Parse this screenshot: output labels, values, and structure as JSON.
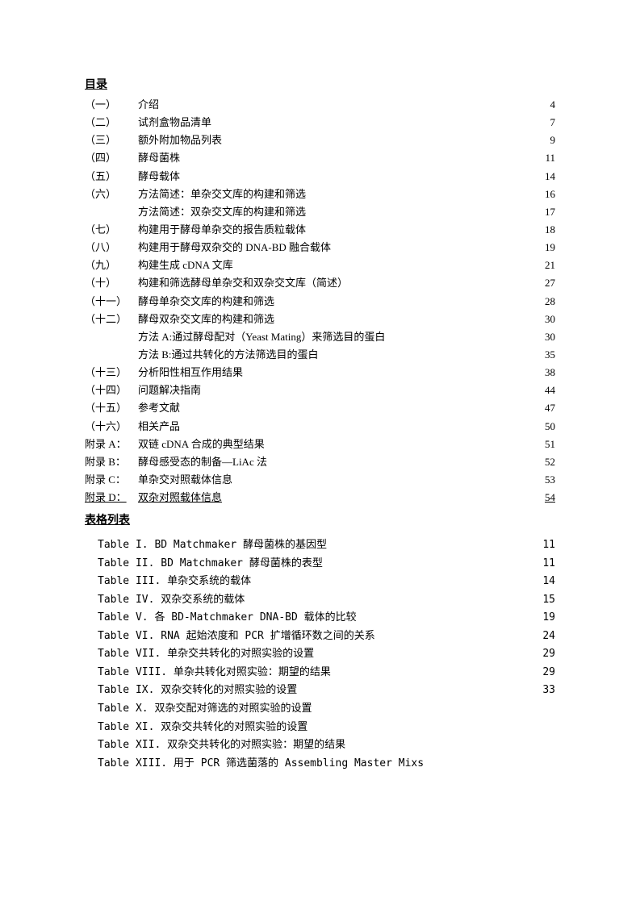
{
  "headings": {
    "toc": "目录",
    "tables": "表格列表"
  },
  "toc": [
    {
      "num": "（一）",
      "title": "介绍",
      "page": "4"
    },
    {
      "num": "（二）",
      "title": "试剂盒物品清单",
      "page": "7"
    },
    {
      "num": "（三）",
      "title": "额外附加物品列表",
      "page": "9"
    },
    {
      "num": "（四）",
      "title": "酵母菌株",
      "page": "11"
    },
    {
      "num": "（五）",
      "title": "酵母载体",
      "page": "14"
    },
    {
      "num": "（六）",
      "title": "方法简述：单杂交文库的构建和筛选",
      "page": "16"
    },
    {
      "num": "",
      "title": "方法简述：双杂交文库的构建和筛选",
      "page": "17"
    },
    {
      "num": "（七）",
      "title": "构建用于酵母单杂交的报告质粒载体",
      "page": "18"
    },
    {
      "num": "（八）",
      "title": "构建用于酵母双杂交的 DNA-BD 融合载体",
      "page": "19"
    },
    {
      "num": "（九）",
      "title": "构建生成 cDNA 文库",
      "page": "21"
    },
    {
      "num": "（十）",
      "title": "构建和筛选酵母单杂交和双杂交文库（简述）",
      "page": "27"
    },
    {
      "num": "（十一）",
      "title": "酵母单杂交文库的构建和筛选",
      "page": "28"
    },
    {
      "num": "（十二）",
      "title": "酵母双杂交文库的构建和筛选",
      "page": "30"
    },
    {
      "num": "",
      "title": "方法 A:通过酵母配对（Yeast Mating）来筛选目的蛋白",
      "page": "30"
    },
    {
      "num": "",
      "title": "方法 B:通过共转化的方法筛选目的蛋白",
      "page": "35"
    },
    {
      "num": "（十三）",
      "title": "分析阳性相互作用结果",
      "page": "38"
    },
    {
      "num": "（十四）",
      "title": "问题解决指南",
      "page": "44"
    },
    {
      "num": "（十五）",
      "title": "参考文献",
      "page": "47"
    },
    {
      "num": "（十六）",
      "title": "相关产品",
      "page": "50"
    }
  ],
  "appendix": [
    {
      "label": "附录 A：",
      "title": "双链 cDNA 合成的典型结果",
      "page": "51",
      "underline": false
    },
    {
      "label": "附录 B：",
      "title": "酵母感受态的制备—LiAc 法",
      "page": "52",
      "underline": false
    },
    {
      "label": "附录 C：",
      "title": "单杂交对照载体信息",
      "page": "53",
      "underline": false
    },
    {
      "label": "附录 D：",
      "title": "双杂对照载体信息",
      "page": "54",
      "underline": true
    }
  ],
  "tables": [
    {
      "label": "Table I.   BD Matchmaker 酵母菌株的基因型",
      "page": "11"
    },
    {
      "label": "Table II.  BD Matchmaker 酵母菌株的表型",
      "page": "11"
    },
    {
      "label": "Table III. 单杂交系统的载体",
      "page": "14"
    },
    {
      "label": "Table IV.  双杂交系统的载体",
      "page": "15"
    },
    {
      "label": "Table V.   各 BD-Matchmaker DNA-BD 载体的比较",
      "page": "19"
    },
    {
      "label": "Table VI.  RNA 起始浓度和 PCR 扩增循环数之间的关系",
      "page": "24"
    },
    {
      "label": "Table VII. 单杂交共转化的对照实验的设置",
      "page": "29"
    },
    {
      "label": "Table VIII. 单杂共转化对照实验：期望的结果",
      "page": "29"
    },
    {
      "label": "Table IX.   双杂交转化的对照实验的设置",
      "page": "33"
    },
    {
      "label": "Table X.    双杂交配对筛选的对照实验的设置",
      "page": ""
    },
    {
      "label": "Table XI.   双杂交共转化的对照实验的设置",
      "page": ""
    },
    {
      "label": "Table XII.   双杂交共转化的对照实验：期望的结果",
      "page": ""
    },
    {
      "label": "Table XIII.   用于 PCR 筛选菌落的 Assembling Master Mixs",
      "page": ""
    }
  ]
}
